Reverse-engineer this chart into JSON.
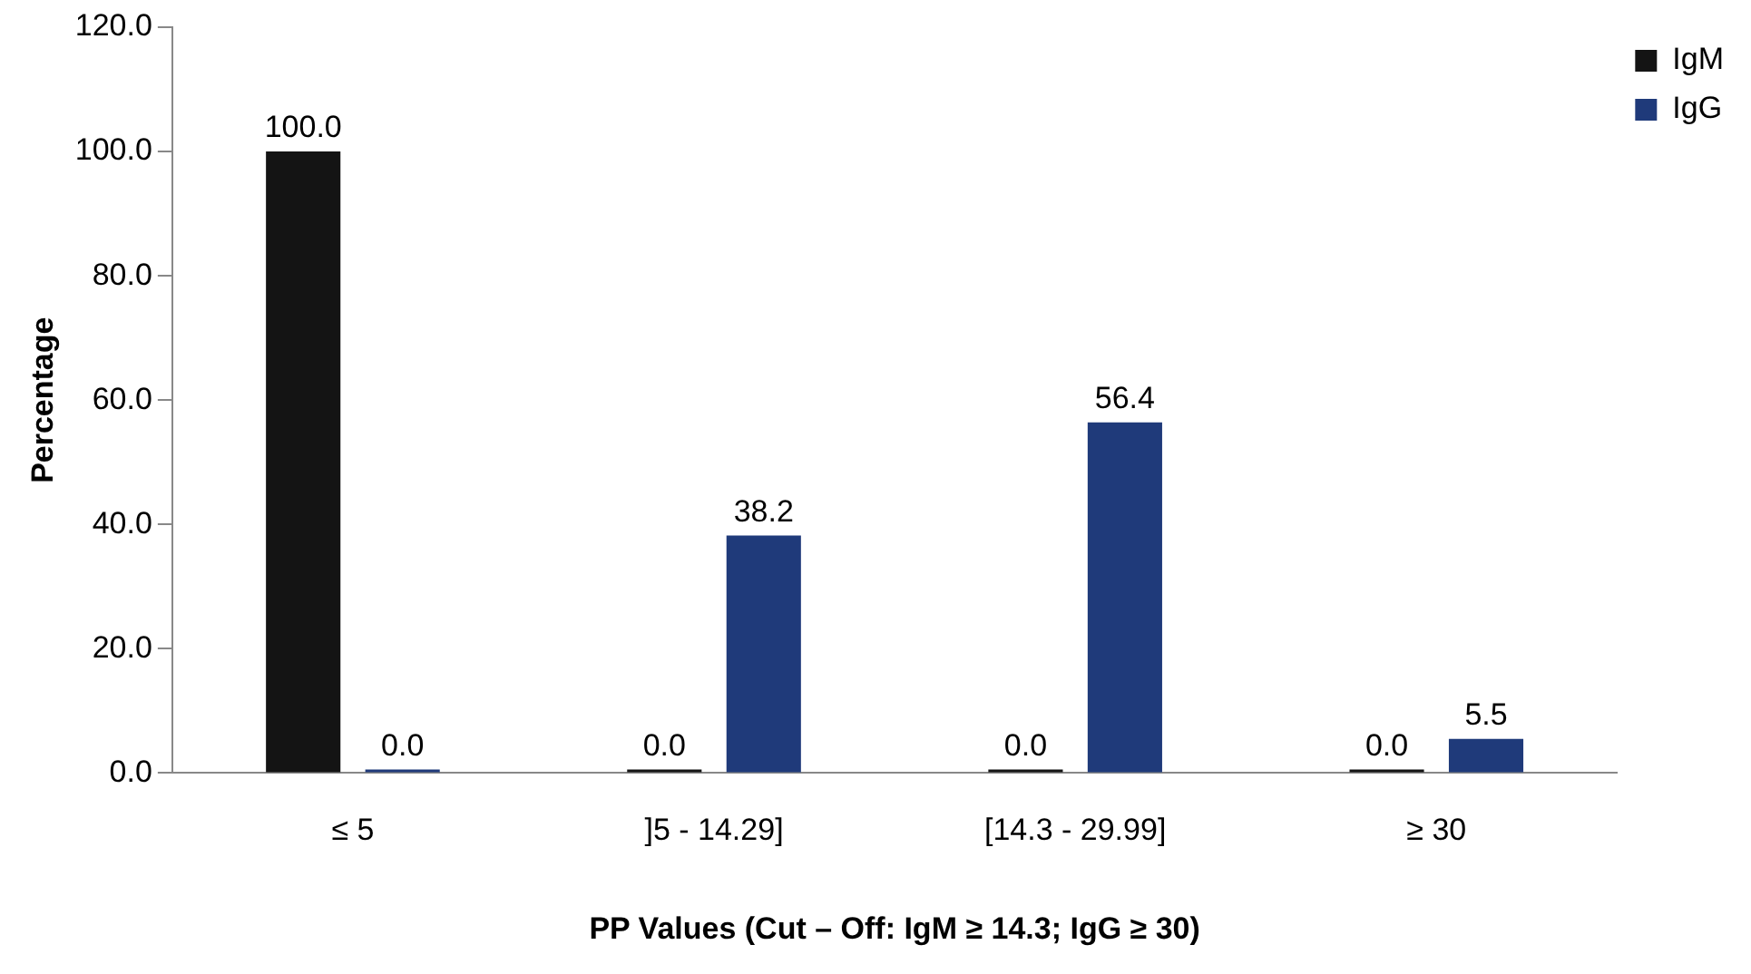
{
  "chart_data": {
    "type": "bar",
    "xlabel": "PP Values (Cut – Off: IgM ≥ 14.3; IgG ≥ 30)",
    "ylabel": "Percentage",
    "categories": [
      "≤ 5",
      "]5 - 14.29]",
      "[14.3 - 29.99]",
      "≥ 30"
    ],
    "series": [
      {
        "name": "IgM",
        "color": "#141414",
        "values": [
          100,
          0,
          0,
          0
        ],
        "value_labels": [
          "100.0",
          "0.0",
          "0.0",
          "0.0"
        ]
      },
      {
        "name": "IgG",
        "color": "#1f3a7a",
        "values": [
          0,
          38.2,
          56.4,
          5.5
        ],
        "value_labels": [
          "0.0",
          "38.2",
          "56.4",
          "5.5"
        ]
      }
    ],
    "ylim": [
      0,
      120
    ],
    "yticks": [
      {
        "value": 0,
        "label": "0.0"
      },
      {
        "value": 20,
        "label": "20.0"
      },
      {
        "value": 40,
        "label": "40.0"
      },
      {
        "value": 60,
        "label": "60.0"
      },
      {
        "value": 80,
        "label": "80.0"
      },
      {
        "value": 100,
        "label": "100.0"
      },
      {
        "value": 120,
        "label": "120.0"
      }
    ],
    "grid": false,
    "legend": "top right"
  }
}
